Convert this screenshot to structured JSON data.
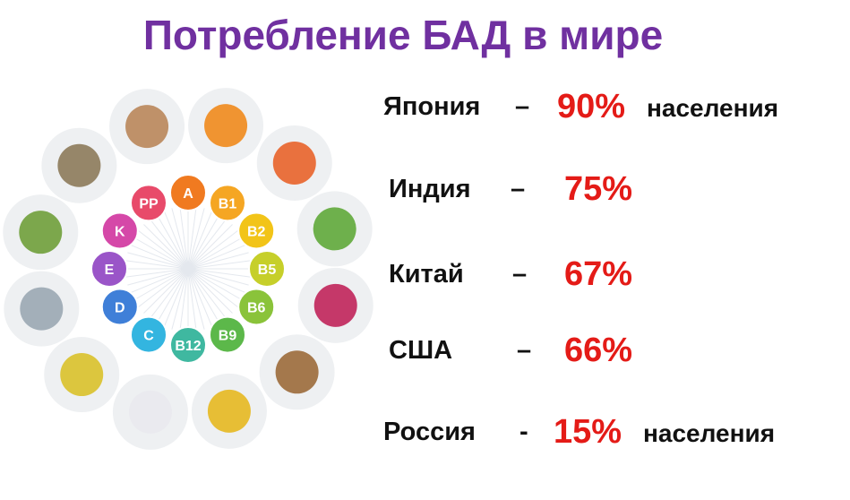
{
  "title": "Потребление БАД в мире",
  "rows": [
    {
      "country": "Япония",
      "dash": "–",
      "percent": "90%",
      "suffix": "населения"
    },
    {
      "country": "Индия",
      "dash": "–",
      "percent": "75%"
    },
    {
      "country": "Китай",
      "dash": "–",
      "percent": "67%"
    },
    {
      "country": "США",
      "dash": "–",
      "percent": "66%"
    },
    {
      "country": "Россия",
      "dash": "-",
      "percent": "15%",
      "suffix": "населения"
    }
  ],
  "vitamins": [
    "A",
    "B1",
    "B2",
    "B5",
    "B6",
    "B9",
    "B12",
    "C",
    "D",
    "E",
    "K",
    "PP"
  ]
}
